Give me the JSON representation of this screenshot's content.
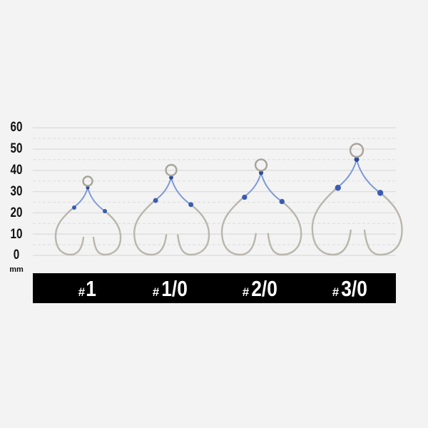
{
  "scale": {
    "ticks": [
      "60",
      "50",
      "40",
      "30",
      "20",
      "10",
      "0"
    ],
    "tick_values": [
      60,
      50,
      40,
      30,
      20,
      10,
      0
    ],
    "unit": "mm",
    "minor_step_mm": 5
  },
  "hooks": [
    {
      "label_hash": "#",
      "label_size": "1"
    },
    {
      "label_hash": "#",
      "label_size": "1/0"
    },
    {
      "label_hash": "#",
      "label_size": "2/0"
    },
    {
      "label_hash": "#",
      "label_size": "3/0"
    }
  ],
  "colors": {
    "background": "#f3f3f3",
    "grid": "#dcdcdc",
    "label_bar": "#000000",
    "assist_line": "#7d9ad6",
    "hook_metal": "#b9b6ae"
  }
}
